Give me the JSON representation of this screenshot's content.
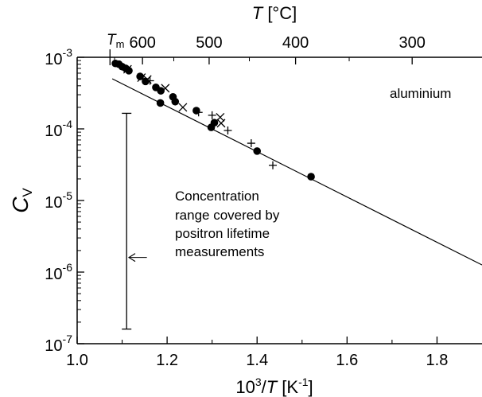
{
  "chart_data": {
    "type": "scatter",
    "material_label": "aluminium",
    "xlabel": {
      "prefix": "10",
      "sup": "3",
      "slash": "/",
      "var": "T",
      "unit": " [K",
      "unit_sup": "-1",
      "unit_close": "]"
    },
    "ylabel": {
      "main": "C",
      "sub": "V"
    },
    "top_axis_label": {
      "var": "T",
      "unit": " [°C]"
    },
    "tm_label": {
      "main": "T",
      "sub": "m"
    },
    "x_axis": {
      "min": 1.0,
      "max": 1.9,
      "ticks": [
        1.0,
        1.2,
        1.4,
        1.6,
        1.8
      ],
      "tick_labels": [
        "1.0",
        "1.2",
        "1.4",
        "1.6",
        "1.8"
      ],
      "minor_step": 0.1
    },
    "y_axis": {
      "scale": "log",
      "min_exp": -7,
      "max_exp": -3,
      "ticks": [
        {
          "exp": -3,
          "base": "10",
          "sup": "-3"
        },
        {
          "exp": -4,
          "base": "10",
          "sup": "-4"
        },
        {
          "exp": -5,
          "base": "10",
          "sup": "-5"
        },
        {
          "exp": -6,
          "base": "10",
          "sup": "-6"
        },
        {
          "exp": -7,
          "base": "10",
          "sup": "-7"
        }
      ]
    },
    "top_axis": {
      "ticks_celsius": [
        600,
        500,
        400,
        300
      ],
      "tick_labels": [
        "600",
        "500",
        "400",
        "300"
      ]
    },
    "melting_point_x": 1.073,
    "fit_line": {
      "x": [
        1.078,
        1.9
      ],
      "log10_y": [
        -3.3,
        -5.9
      ]
    },
    "series": [
      {
        "marker": "filled-circle",
        "points": [
          {
            "x": 1.085,
            "y": 0.00082
          },
          {
            "x": 1.093,
            "y": 0.0008
          },
          {
            "x": 1.1,
            "y": 0.00074
          },
          {
            "x": 1.108,
            "y": 0.0007
          },
          {
            "x": 1.115,
            "y": 0.00065
          },
          {
            "x": 1.14,
            "y": 0.00054
          },
          {
            "x": 1.152,
            "y": 0.00046
          },
          {
            "x": 1.175,
            "y": 0.00038
          },
          {
            "x": 1.186,
            "y": 0.00034
          },
          {
            "x": 1.185,
            "y": 0.00023
          },
          {
            "x": 1.213,
            "y": 0.00028
          },
          {
            "x": 1.218,
            "y": 0.00024
          },
          {
            "x": 1.265,
            "y": 0.00018
          },
          {
            "x": 1.298,
            "y": 0.000105
          },
          {
            "x": 1.305,
            "y": 0.000122
          },
          {
            "x": 1.4,
            "y": 4.9e-05
          },
          {
            "x": 1.52,
            "y": 2.15e-05
          }
        ]
      },
      {
        "marker": "cross-x",
        "points": [
          {
            "x": 1.112,
            "y": 0.00068
          },
          {
            "x": 1.143,
            "y": 0.00052
          },
          {
            "x": 1.156,
            "y": 0.00049
          },
          {
            "x": 1.196,
            "y": 0.00037
          },
          {
            "x": 1.235,
            "y": 0.0002
          },
          {
            "x": 1.318,
            "y": 0.000145
          },
          {
            "x": 1.32,
            "y": 0.00012
          }
        ]
      },
      {
        "marker": "plus",
        "points": [
          {
            "x": 1.162,
            "y": 0.00047
          },
          {
            "x": 1.27,
            "y": 0.00017
          },
          {
            "x": 1.3,
            "y": 0.000155
          },
          {
            "x": 1.335,
            "y": 9.5e-05
          },
          {
            "x": 1.387,
            "y": 6.3e-05
          },
          {
            "x": 1.435,
            "y": 3.1e-05
          }
        ]
      }
    ],
    "range_bar": {
      "x": 1.11,
      "y_low": 1.6e-07,
      "y_high": 0.000165
    },
    "annotation": {
      "lines": [
        "Concentration",
        "range covered by",
        "positron lifetime",
        "measurements"
      ],
      "arrow_to_x": 1.115,
      "arrow_from_x": 1.155,
      "arrow_y": 1.6e-06
    }
  }
}
